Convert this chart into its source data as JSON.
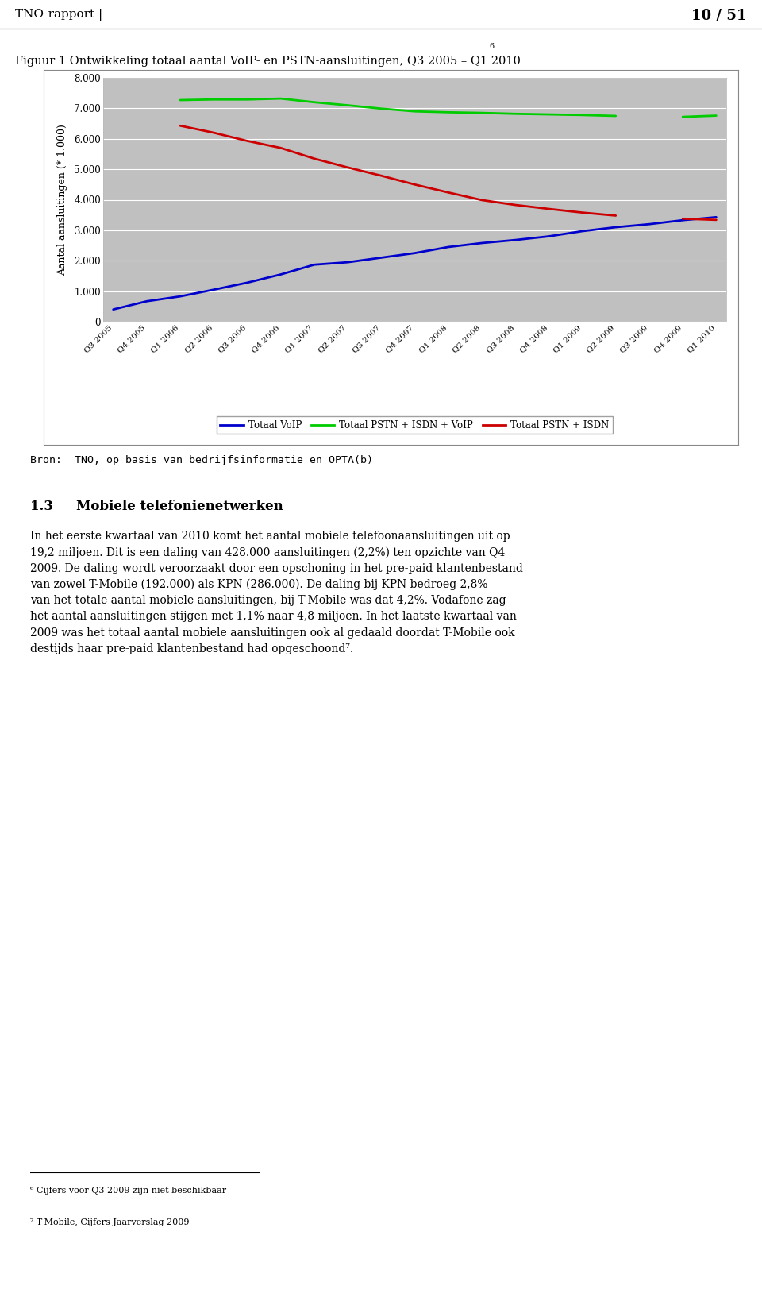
{
  "title_main": "Figuur 1 Ontwikkeling totaal aantal VoIP- en PSTN-aansluitingen, Q3 2005 – Q1 2010",
  "title_sup": "6",
  "ylabel": "Aantal aansluitingen (* 1.000)",
  "source_text": "Bron:  TNO, op basis van bedrijfsinformatie en OPTA(b)",
  "header_left": "TNO-rapport |",
  "header_right": "10 / 51",
  "section_num": "1.3",
  "section_title": "Mobiele telefonienetwerken",
  "footnote1": "6 Cijfers voor Q3 2009 zijn niet beschikbaar",
  "footnote2": "7 T-Mobile, Cijfers Jaarverslag 2009",
  "x_labels": [
    "Q3 2005",
    "Q4 2005",
    "Q1 2006",
    "Q2 2006",
    "Q3 2006",
    "Q4 2006",
    "Q1 2007",
    "Q2 2007",
    "Q3 2007",
    "Q4 2007",
    "Q1 2008",
    "Q2 2008",
    "Q3 2008",
    "Q4 2008",
    "Q1 2009",
    "Q2 2009",
    "Q3 2009",
    "Q4 2009",
    "Q1 2010"
  ],
  "voip": [
    400,
    670,
    830,
    1050,
    1280,
    1550,
    1870,
    1950,
    2100,
    2250,
    2450,
    2580,
    2680,
    2800,
    2970,
    3100,
    3200,
    3330,
    3430
  ],
  "pstn_isdn_voip": [
    null,
    null,
    7270,
    7290,
    7290,
    7320,
    7200,
    7100,
    6990,
    6900,
    6870,
    6850,
    6820,
    6800,
    6780,
    6750,
    null,
    6720,
    6760
  ],
  "pstn_isdn": [
    null,
    null,
    6430,
    6200,
    5930,
    5700,
    5350,
    5060,
    4790,
    4500,
    4240,
    3990,
    3830,
    3700,
    3580,
    3480,
    null,
    3380,
    3340
  ],
  "ylim": [
    0,
    8000
  ],
  "yticks": [
    0,
    1000,
    2000,
    3000,
    4000,
    5000,
    6000,
    7000,
    8000
  ],
  "legend_labels": [
    "Totaal VoIP",
    "Totaal PSTN + ISDN + VoIP",
    "Totaal PSTN + ISDN"
  ],
  "line_colors": [
    "#0000CC",
    "#00CC00",
    "#CC0000"
  ],
  "plot_bg": "#C0C0C0",
  "outer_bg": "#FFFFFF",
  "chart_border": "#AAAAAA"
}
